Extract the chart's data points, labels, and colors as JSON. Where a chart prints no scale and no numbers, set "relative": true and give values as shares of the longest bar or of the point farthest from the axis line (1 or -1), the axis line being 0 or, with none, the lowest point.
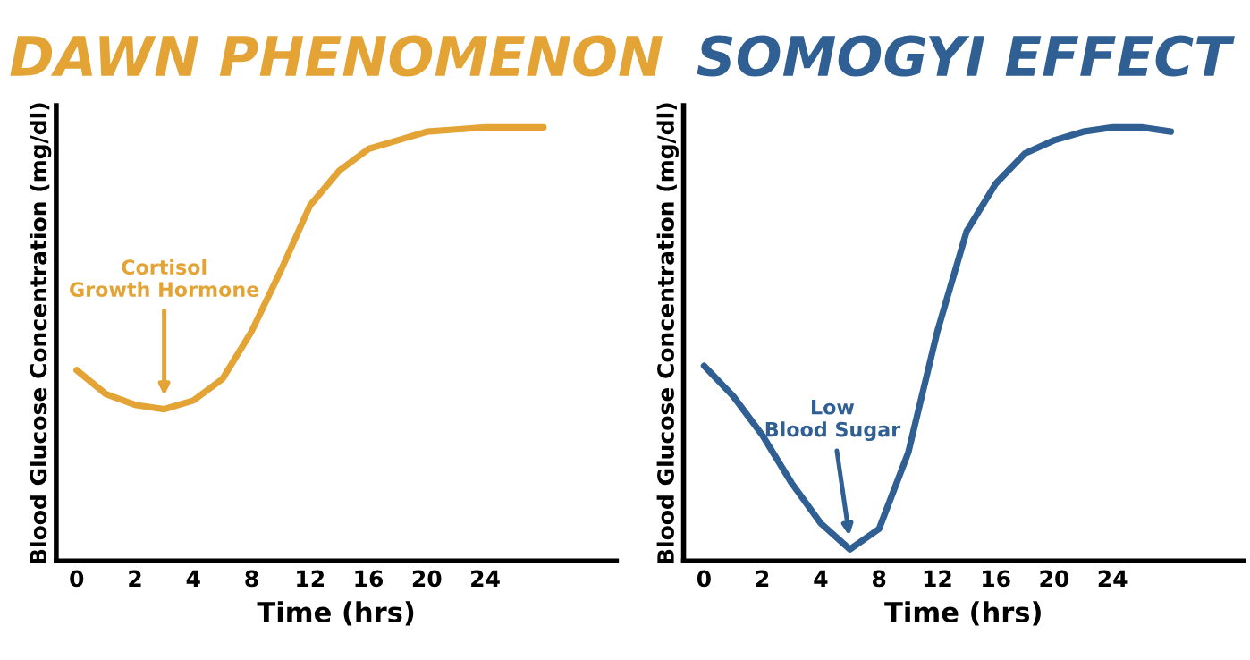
{
  "chart_data": [
    {
      "type": "line",
      "title": "DAWN PHENOMENON",
      "xlabel": "Time (hrs)",
      "ylabel": "Blood Glucose Concentration (mg/dl)",
      "relative": true,
      "categories": [
        "0",
        null,
        "2",
        null,
        "4",
        null,
        "8",
        null,
        "12",
        null,
        "16",
        null,
        "20",
        null,
        "24",
        null,
        null,
        null,
        null
      ],
      "series": [
        {
          "color": "#e3a435",
          "values": [
            0.44,
            0.385,
            0.36,
            0.35,
            0.37,
            0.42,
            0.53,
            0.67,
            0.82,
            0.9,
            0.95,
            0.97,
            0.99,
            0.995,
            1.0,
            1.0,
            1.0,
            null,
            null
          ]
        }
      ],
      "annotations": [
        "Cortisol\nGrowth Hormone"
      ],
      "grid": false,
      "legend": false
    },
    {
      "type": "line",
      "title": "SOMOGYI EFFECT",
      "xlabel": "Time (hrs)",
      "ylabel": "Blood Glucose Concentration (mg/dl)",
      "relative": true,
      "categories": [
        "0",
        null,
        "2",
        null,
        "4",
        null,
        "8",
        null,
        "12",
        null,
        "16",
        null,
        "20",
        null,
        "24",
        null,
        null,
        null,
        null
      ],
      "series": [
        {
          "color": "#2f5f93",
          "values": [
            0.45,
            0.38,
            0.29,
            0.18,
            0.087,
            0.027,
            0.074,
            0.25,
            0.53,
            0.76,
            0.87,
            0.94,
            0.97,
            0.99,
            1.0,
            1.0,
            0.99,
            null,
            null
          ]
        }
      ],
      "annotations": [
        "Low\nBlood Sugar"
      ],
      "grid": false,
      "legend": false
    }
  ]
}
